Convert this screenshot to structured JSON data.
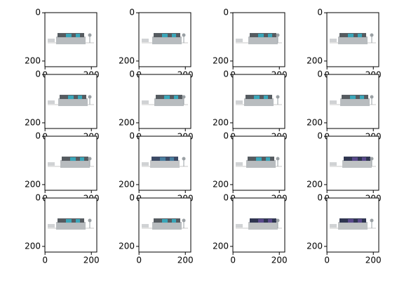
{
  "chart_data": [
    {
      "type": "image",
      "xlim": [
        -0.5,
        223.5
      ],
      "ylim": [
        223.5,
        -0.5
      ],
      "xticks": [
        0,
        200
      ],
      "yticks": [
        0,
        200
      ]
    },
    {
      "type": "image",
      "xlim": [
        -0.5,
        223.5
      ],
      "ylim": [
        223.5,
        -0.5
      ],
      "xticks": [
        0,
        200
      ],
      "yticks": [
        0,
        200
      ]
    },
    {
      "type": "image",
      "xlim": [
        -0.5,
        223.5
      ],
      "ylim": [
        223.5,
        -0.5
      ],
      "xticks": [
        0,
        200
      ],
      "yticks": [
        0,
        200
      ]
    },
    {
      "type": "image",
      "xlim": [
        -0.5,
        223.5
      ],
      "ylim": [
        223.5,
        -0.5
      ],
      "xticks": [
        0,
        200
      ],
      "yticks": [
        0,
        200
      ]
    },
    {
      "type": "image",
      "xlim": [
        -0.5,
        223.5
      ],
      "ylim": [
        223.5,
        -0.5
      ],
      "xticks": [
        0,
        200
      ],
      "yticks": [
        0,
        200
      ]
    },
    {
      "type": "image",
      "xlim": [
        -0.5,
        223.5
      ],
      "ylim": [
        223.5,
        -0.5
      ],
      "xticks": [
        0,
        200
      ],
      "yticks": [
        0,
        200
      ]
    },
    {
      "type": "image",
      "xlim": [
        -0.5,
        223.5
      ],
      "ylim": [
        223.5,
        -0.5
      ],
      "xticks": [
        0,
        200
      ],
      "yticks": [
        0,
        200
      ]
    },
    {
      "type": "image",
      "xlim": [
        -0.5,
        223.5
      ],
      "ylim": [
        223.5,
        -0.5
      ],
      "xticks": [
        0,
        200
      ],
      "yticks": [
        0,
        200
      ]
    },
    {
      "type": "image",
      "xlim": [
        -0.5,
        223.5
      ],
      "ylim": [
        223.5,
        -0.5
      ],
      "xticks": [
        0,
        200
      ],
      "yticks": [
        0,
        200
      ]
    },
    {
      "type": "image",
      "xlim": [
        -0.5,
        223.5
      ],
      "ylim": [
        223.5,
        -0.5
      ],
      "xticks": [
        0,
        200
      ],
      "yticks": [
        0,
        200
      ]
    },
    {
      "type": "image",
      "xlim": [
        -0.5,
        223.5
      ],
      "ylim": [
        223.5,
        -0.5
      ],
      "xticks": [
        0,
        200
      ],
      "yticks": [
        0,
        200
      ]
    },
    {
      "type": "image",
      "xlim": [
        -0.5,
        223.5
      ],
      "ylim": [
        223.5,
        -0.5
      ],
      "xticks": [
        0,
        200
      ],
      "yticks": [
        0,
        200
      ]
    },
    {
      "type": "image",
      "xlim": [
        -0.5,
        223.5
      ],
      "ylim": [
        223.5,
        -0.5
      ],
      "xticks": [
        0,
        200
      ],
      "yticks": [
        0,
        200
      ]
    },
    {
      "type": "image",
      "xlim": [
        -0.5,
        223.5
      ],
      "ylim": [
        223.5,
        -0.5
      ],
      "xticks": [
        0,
        200
      ],
      "yticks": [
        0,
        200
      ]
    },
    {
      "type": "image",
      "xlim": [
        -0.5,
        223.5
      ],
      "ylim": [
        223.5,
        -0.5
      ],
      "xticks": [
        0,
        200
      ],
      "yticks": [
        0,
        200
      ]
    },
    {
      "type": "image",
      "xlim": [
        -0.5,
        223.5
      ],
      "ylim": [
        223.5,
        -0.5
      ],
      "xticks": [
        0,
        200
      ],
      "yticks": [
        0,
        200
      ]
    }
  ]
}
